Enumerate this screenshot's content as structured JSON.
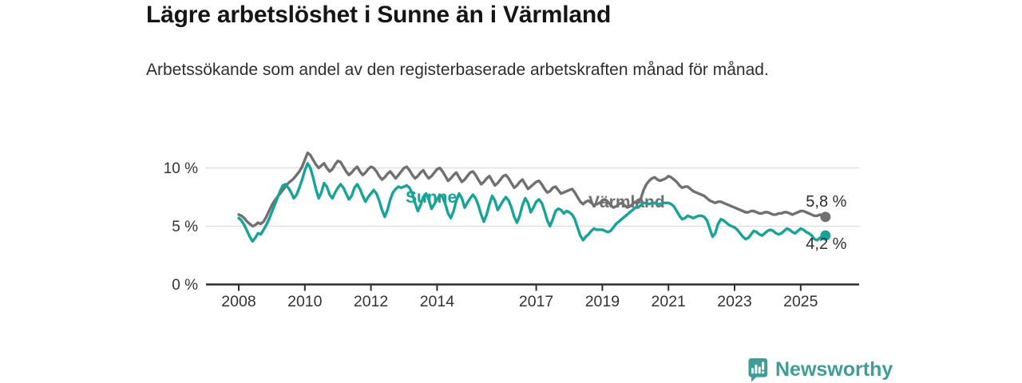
{
  "header": {
    "title": "Lägre arbetslöshet i Sunne än i Värmland",
    "subtitle": "Arbetssökande som andel av den registerbaserade arbetskraften månad för månad."
  },
  "chart_data": {
    "type": "line",
    "title": "Lägre arbetslöshet i Sunne än i Värmland",
    "subtitle": "Arbetssökande som andel av den registerbaserade arbetskraften månad för månad.",
    "x_unit": "month",
    "x_start": "2008-01",
    "x_end": "2025-10",
    "grid": "horizontal",
    "legend_position": "inline-labels",
    "ylim": [
      0,
      12.3
    ],
    "y_axis": {
      "ticks": [
        {
          "value": 0,
          "label": "0 %"
        },
        {
          "value": 5,
          "label": "5 %"
        },
        {
          "value": 10,
          "label": "10 %"
        }
      ]
    },
    "x_axis": {
      "tick_years": [
        2008,
        2010,
        2012,
        2014,
        2017,
        2019,
        2021,
        2023,
        2025
      ],
      "tick_labels": [
        "2008",
        "2010",
        "2012",
        "2014",
        "2017",
        "2019",
        "2021",
        "2023",
        "2025"
      ]
    },
    "series": [
      {
        "name": "Värmland",
        "color": "#707073",
        "end_label": "5,8 %",
        "end_value": 5.8,
        "name_label_pos": {
          "x": 737,
          "y": 260
        },
        "end_label_dy": -13,
        "values": [
          6.0,
          5.9,
          5.7,
          5.4,
          5.2,
          5.0,
          5.1,
          5.3,
          5.2,
          5.4,
          5.8,
          6.3,
          6.8,
          7.2,
          7.5,
          7.8,
          8.1,
          8.4,
          8.7,
          8.9,
          9.1,
          9.4,
          9.7,
          10.1,
          10.7,
          11.3,
          11.1,
          10.7,
          10.3,
          10.0,
          10.2,
          10.4,
          10.0,
          9.7,
          9.9,
          10.3,
          10.6,
          10.5,
          10.1,
          9.7,
          9.4,
          9.6,
          9.9,
          10.1,
          9.7,
          9.4,
          9.6,
          9.9,
          10.1,
          10.0,
          9.7,
          9.3,
          9.0,
          9.2,
          9.5,
          9.7,
          9.4,
          9.1,
          9.4,
          9.7,
          10.0,
          10.1,
          9.8,
          9.4,
          9.1,
          9.3,
          9.6,
          9.8,
          9.4,
          9.1,
          9.3,
          9.6,
          9.9,
          10.0,
          9.7,
          9.3,
          8.9,
          9.1,
          9.4,
          9.6,
          9.2,
          8.8,
          9.0,
          9.3,
          9.6,
          9.7,
          9.4,
          9.0,
          8.6,
          8.8,
          9.1,
          9.3,
          8.9,
          8.5,
          8.7,
          9.0,
          9.3,
          9.4,
          9.1,
          8.7,
          8.3,
          8.5,
          8.8,
          9.0,
          8.6,
          8.2,
          8.4,
          8.6,
          8.8,
          8.9,
          8.6,
          8.2,
          7.9,
          8.0,
          8.3,
          8.4,
          8.1,
          7.8,
          7.9,
          8.0,
          8.1,
          8.2,
          7.9,
          7.5,
          7.1,
          6.9,
          7.1,
          7.2,
          7.0,
          6.8,
          6.9,
          7.0,
          7.2,
          7.3,
          7.1,
          6.8,
          6.6,
          6.7,
          6.9,
          7.0,
          6.8,
          6.6,
          6.7,
          6.9,
          7.1,
          7.0,
          7.4,
          8.1,
          8.6,
          8.9,
          9.1,
          9.2,
          9.0,
          8.9,
          9.0,
          9.1,
          9.3,
          9.2,
          9.0,
          8.8,
          8.5,
          8.3,
          8.4,
          8.4,
          8.2,
          8.0,
          7.9,
          7.8,
          7.7,
          7.6,
          7.4,
          7.2,
          7.1,
          7.0,
          7.1,
          7.1,
          7.0,
          6.9,
          6.8,
          6.7,
          6.6,
          6.5,
          6.4,
          6.3,
          6.2,
          6.2,
          6.3,
          6.3,
          6.2,
          6.1,
          6.1,
          6.2,
          6.2,
          6.1,
          6.0,
          6.0,
          6.1,
          6.1,
          6.2,
          6.2,
          6.1,
          6.0,
          6.1,
          6.2,
          6.3,
          6.3,
          6.2,
          6.1,
          6.0,
          5.9,
          5.9,
          6.0,
          5.9,
          5.8
        ]
      },
      {
        "name": "Sunne",
        "color": "#17a398",
        "end_label": "4,2 %",
        "end_value": 4.2,
        "name_label_pos": {
          "x": 508,
          "y": 254
        },
        "end_label_dy": 17,
        "values": [
          5.7,
          5.5,
          5.1,
          4.6,
          4.1,
          3.7,
          4.0,
          4.4,
          4.3,
          4.7,
          5.1,
          5.6,
          6.2,
          6.8,
          7.4,
          8.0,
          8.5,
          8.6,
          8.3,
          7.9,
          7.4,
          7.7,
          8.3,
          9.0,
          9.8,
          10.4,
          10.0,
          9.2,
          8.2,
          7.4,
          7.9,
          8.7,
          8.4,
          7.7,
          7.4,
          7.9,
          8.3,
          8.6,
          8.3,
          7.8,
          7.3,
          7.6,
          8.3,
          8.6,
          8.2,
          7.6,
          7.1,
          7.5,
          7.8,
          8.1,
          7.8,
          7.2,
          6.4,
          5.8,
          6.4,
          7.3,
          7.9,
          8.2,
          8.4,
          8.3,
          8.4,
          8.5,
          8.3,
          7.8,
          7.0,
          6.3,
          6.8,
          7.5,
          7.8,
          7.3,
          6.5,
          6.9,
          7.3,
          7.7,
          7.5,
          6.9,
          6.1,
          5.7,
          6.3,
          7.2,
          7.8,
          7.4,
          6.6,
          7.0,
          7.4,
          7.7,
          7.4,
          6.8,
          6.0,
          5.4,
          6.0,
          6.9,
          7.6,
          7.2,
          6.4,
          6.8,
          7.2,
          7.5,
          7.2,
          6.6,
          5.8,
          5.3,
          5.9,
          6.8,
          7.4,
          7.0,
          6.2,
          6.6,
          7.1,
          7.3,
          7.0,
          6.3,
          5.5,
          5.0,
          5.6,
          6.3,
          6.5,
          6.4,
          6.1,
          6.3,
          6.2,
          6.0,
          5.6,
          4.9,
          4.2,
          3.8,
          4.1,
          4.3,
          4.6,
          4.8,
          4.7,
          4.7,
          4.7,
          4.6,
          4.5,
          4.6,
          4.9,
          5.2,
          5.4,
          5.6,
          5.8,
          6.0,
          6.2,
          6.4,
          6.6,
          6.6,
          6.8,
          7.0,
          7.0,
          6.9,
          7.0,
          7.0,
          6.9,
          6.9,
          7.0,
          7.0,
          7.0,
          6.9,
          6.7,
          6.3,
          5.9,
          5.6,
          5.7,
          5.9,
          5.8,
          5.7,
          5.8,
          5.9,
          5.9,
          5.8,
          5.5,
          4.8,
          4.1,
          4.4,
          5.2,
          5.6,
          5.5,
          5.3,
          5.1,
          5.0,
          4.9,
          4.7,
          4.4,
          4.1,
          3.9,
          4.0,
          4.3,
          4.6,
          4.5,
          4.3,
          4.2,
          4.4,
          4.6,
          4.7,
          4.6,
          4.4,
          4.3,
          4.4,
          4.6,
          4.8,
          4.7,
          4.5,
          4.4,
          4.6,
          4.8,
          4.7,
          4.5,
          4.4,
          4.2,
          3.9,
          3.8,
          4.0,
          4.1,
          4.2
        ]
      }
    ]
  },
  "branding": {
    "logo_text": "Newsworthy",
    "logo_color": "#3f9c96",
    "logo_icon": "bar-chart-speech-bubble"
  },
  "colors": {
    "background": "#ffffff",
    "title_text": "#151515",
    "body_text": "#2e2e2e",
    "axis_line": "#2d2d2d",
    "gridline": "#dcdcdc",
    "tick_label": "#333333",
    "varmland_line": "#707073",
    "sunne_line": "#17a398"
  }
}
